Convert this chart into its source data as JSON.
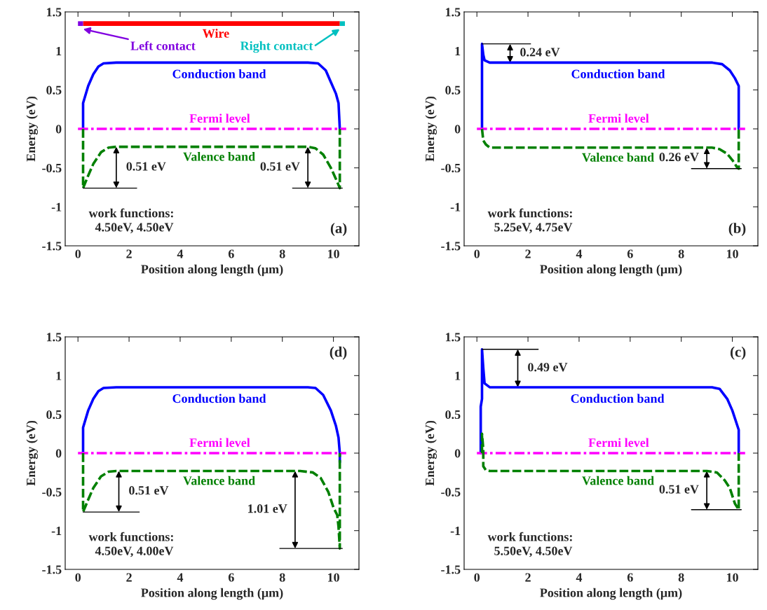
{
  "chart_data": [
    {
      "type": "line",
      "title": "(a)",
      "xlabel": "Position along length (μm)",
      "ylabel": "Energy (eV)",
      "xlim": [
        -0.5,
        11
      ],
      "ylim": [
        -1.5,
        1.5
      ],
      "xticks": [
        0,
        2,
        4,
        6,
        8,
        10
      ],
      "yticks": [
        -1.5,
        -1,
        -0.5,
        0,
        0.5,
        1,
        1.5
      ],
      "series": [
        {
          "name": "Conduction band",
          "color": "#0000ff",
          "line_style": "solid",
          "x": [
            0.2,
            0.2,
            0.4,
            0.6,
            0.8,
            1.0,
            1.5,
            9.0,
            9.4,
            9.7,
            9.9,
            10.1,
            10.2,
            10.25
          ],
          "values": [
            0,
            0.33,
            0.55,
            0.7,
            0.8,
            0.84,
            0.85,
            0.85,
            0.84,
            0.75,
            0.6,
            0.45,
            0.33,
            0
          ]
        },
        {
          "name": "Fermi level",
          "color": "#ff00ff",
          "line_style": "dashdot",
          "x": [
            0,
            10.5
          ],
          "values": [
            0,
            0
          ]
        },
        {
          "name": "Valence band",
          "color": "#008000",
          "line_style": "dashed",
          "x": [
            0.2,
            0.2,
            0.4,
            0.6,
            0.9,
            1.2,
            1.5,
            9.0,
            9.3,
            9.6,
            9.9,
            10.15,
            10.25,
            10.25
          ],
          "values": [
            0,
            -0.76,
            -0.6,
            -0.45,
            -0.3,
            -0.24,
            -0.23,
            -0.23,
            -0.25,
            -0.33,
            -0.5,
            -0.68,
            -0.76,
            0
          ]
        }
      ],
      "annotations": [
        "work functions:\n  4.50eV, 4.50eV",
        "Wire",
        "Left contact",
        "Right contact",
        {
          "text": "0.51 eV",
          "x": 1.5,
          "y": -0.23
        },
        {
          "text": "0.51 eV",
          "x": 9.0,
          "y": -0.23
        }
      ]
    },
    {
      "type": "line",
      "title": "(b)",
      "xlabel": "Position along length (μm)",
      "ylabel": "Energy (eV)",
      "xlim": [
        -0.5,
        11
      ],
      "ylim": [
        -1.5,
        1.5
      ],
      "xticks": [
        0,
        2,
        4,
        6,
        8,
        10
      ],
      "yticks": [
        -1.5,
        -1,
        -0.5,
        0,
        0.5,
        1,
        1.5
      ],
      "series": [
        {
          "name": "Conduction band",
          "color": "#0000ff",
          "line_style": "solid",
          "x": [
            0.2,
            0.2,
            0.25,
            0.3,
            0.5,
            9.2,
            9.6,
            9.9,
            10.1,
            10.25,
            10.25
          ],
          "values": [
            0,
            1.09,
            0.95,
            0.88,
            0.85,
            0.85,
            0.83,
            0.75,
            0.65,
            0.55,
            0
          ]
        },
        {
          "name": "Fermi level",
          "color": "#ff00ff",
          "line_style": "dashdot",
          "x": [
            0,
            10.5
          ],
          "values": [
            0,
            0
          ]
        },
        {
          "name": "Valence band",
          "color": "#008000",
          "line_style": "dashed",
          "x": [
            0.2,
            0.25,
            0.35,
            0.5,
            9.2,
            9.5,
            9.8,
            10.0,
            10.2,
            10.25,
            10.25
          ],
          "values": [
            0,
            -0.15,
            -0.2,
            -0.24,
            -0.24,
            -0.26,
            -0.32,
            -0.4,
            -0.5,
            -0.51,
            0
          ]
        }
      ],
      "annotations": [
        "work functions:\n  5.25eV, 4.75eV",
        {
          "text": "0.24 eV",
          "x": 1.3,
          "y": 0.85
        },
        {
          "text": "0.26 eV",
          "x": 9.0,
          "y": -0.24
        }
      ]
    },
    {
      "type": "line",
      "title": "(d)",
      "xlabel": "Position along length (μm)",
      "ylabel": "Energy (eV)",
      "xlim": [
        -0.5,
        11
      ],
      "ylim": [
        -1.5,
        1.5
      ],
      "xticks": [
        0,
        2,
        4,
        6,
        8,
        10
      ],
      "yticks": [
        -1.5,
        -1,
        -0.5,
        0,
        0.5,
        1,
        1.5
      ],
      "series": [
        {
          "name": "Conduction band",
          "color": "#0000ff",
          "line_style": "solid",
          "x": [
            0.2,
            0.2,
            0.4,
            0.6,
            0.8,
            1.0,
            1.5,
            9.0,
            9.3,
            9.6,
            9.9,
            10.1,
            10.2,
            10.25,
            10.25
          ],
          "values": [
            0,
            0.33,
            0.55,
            0.7,
            0.8,
            0.84,
            0.85,
            0.85,
            0.84,
            0.75,
            0.55,
            0.35,
            0.2,
            0,
            -0.12
          ]
        },
        {
          "name": "Fermi level",
          "color": "#ff00ff",
          "line_style": "dashdot",
          "x": [
            0,
            10.5
          ],
          "values": [
            0,
            0
          ]
        },
        {
          "name": "Valence band",
          "color": "#008000",
          "line_style": "dashed",
          "x": [
            0.2,
            0.2,
            0.4,
            0.6,
            0.9,
            1.2,
            1.5,
            8.7,
            9.2,
            9.5,
            9.8,
            10.0,
            10.15,
            10.2,
            10.25,
            10.25
          ],
          "values": [
            0,
            -0.76,
            -0.6,
            -0.45,
            -0.3,
            -0.24,
            -0.23,
            -0.23,
            -0.25,
            -0.32,
            -0.5,
            -0.7,
            -0.8,
            -0.95,
            -1.23,
            0
          ]
        }
      ],
      "annotations": [
        "work functions:\n  4.50eV, 4.00eV",
        {
          "text": "0.51 eV",
          "x": 1.6,
          "y": -0.23
        },
        {
          "text": "1.01 eV",
          "x": 8.5,
          "y": -0.23
        }
      ]
    },
    {
      "type": "line",
      "title": "(c)",
      "xlabel": "Position along length (μm)",
      "ylabel": "Energy (eV)",
      "xlim": [
        -0.5,
        11
      ],
      "ylim": [
        -1.5,
        1.5
      ],
      "xticks": [
        0,
        2,
        4,
        6,
        8,
        10
      ],
      "yticks": [
        -1.5,
        -1,
        -0.5,
        0,
        0.5,
        1,
        1.5
      ],
      "series": [
        {
          "name": "Conduction band",
          "color": "#0000ff",
          "line_style": "solid",
          "x": [
            0.15,
            0.15,
            0.2,
            0.2,
            0.25,
            0.3,
            0.5,
            9.2,
            9.5,
            9.8,
            10.0,
            10.2,
            10.25,
            10.25
          ],
          "values": [
            0,
            0.6,
            0.7,
            1.34,
            1.1,
            0.9,
            0.85,
            0.85,
            0.83,
            0.7,
            0.55,
            0.35,
            0.3,
            0
          ]
        },
        {
          "name": "Fermi level",
          "color": "#ff00ff",
          "line_style": "dashdot",
          "x": [
            0,
            10.5
          ],
          "values": [
            0,
            0
          ]
        },
        {
          "name": "Valence band",
          "color": "#008000",
          "line_style": "dashed",
          "x": [
            0.2,
            0.2,
            0.25,
            0.25,
            0.35,
            0.5,
            9.0,
            9.4,
            9.7,
            9.9,
            10.1,
            10.25,
            10.25
          ],
          "values": [
            0,
            0.25,
            0.05,
            -0.17,
            -0.22,
            -0.23,
            -0.23,
            -0.25,
            -0.35,
            -0.45,
            -0.65,
            -0.73,
            0
          ]
        }
      ],
      "annotations": [
        "work functions:\n  5.50eV, 4.50eV",
        {
          "text": "0.49 eV",
          "x": 1.6,
          "y": 0.85
        },
        {
          "text": "0.51 eV",
          "x": 9.0,
          "y": -0.23
        }
      ]
    }
  ]
}
